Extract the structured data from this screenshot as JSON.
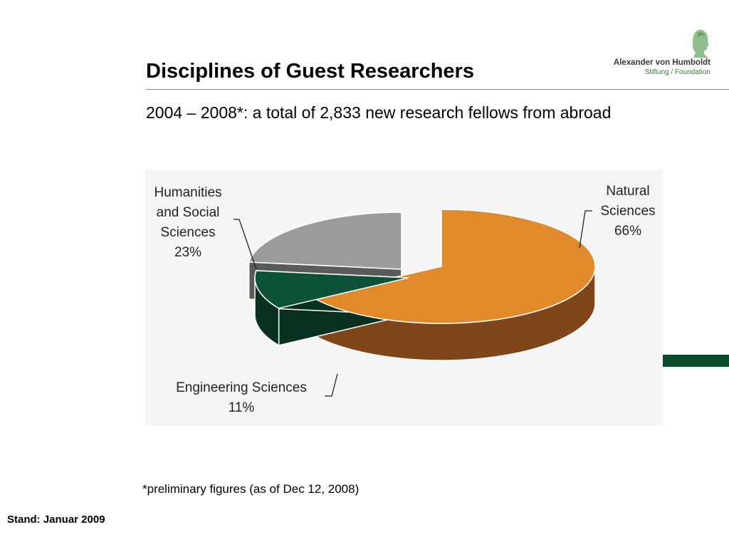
{
  "header": {
    "title": "Disciplines of Guest Researchers",
    "subtitle": "2004 – 2008*: a total of 2,833 new research fellows from abroad"
  },
  "logo": {
    "name": "Alexander von Humboldt",
    "sub": "Stiftung / Foundation",
    "color": "#2e7d32"
  },
  "chart_data": {
    "type": "pie",
    "style": "3d-exploded",
    "slices": [
      {
        "label_lines": [
          "Natural",
          "Sciences"
        ],
        "value": 66,
        "value_label": "66%",
        "color": "#e08a2c",
        "side_color": "#7f4719"
      },
      {
        "label_lines": [
          "Engineering Sciences"
        ],
        "value": 11,
        "value_label": "11%",
        "color": "#0b5236",
        "side_color": "#07301f"
      },
      {
        "label_lines": [
          "Humanities",
          "and Social",
          "Sciences"
        ],
        "value": 23,
        "value_label": "23%",
        "color": "#9b9b9b",
        "side_color": "#5a5a5a"
      }
    ]
  },
  "footer": {
    "footnote": "*preliminary figures (as of Dec 12, 2008)",
    "stand": "Stand: Januar 2009"
  }
}
